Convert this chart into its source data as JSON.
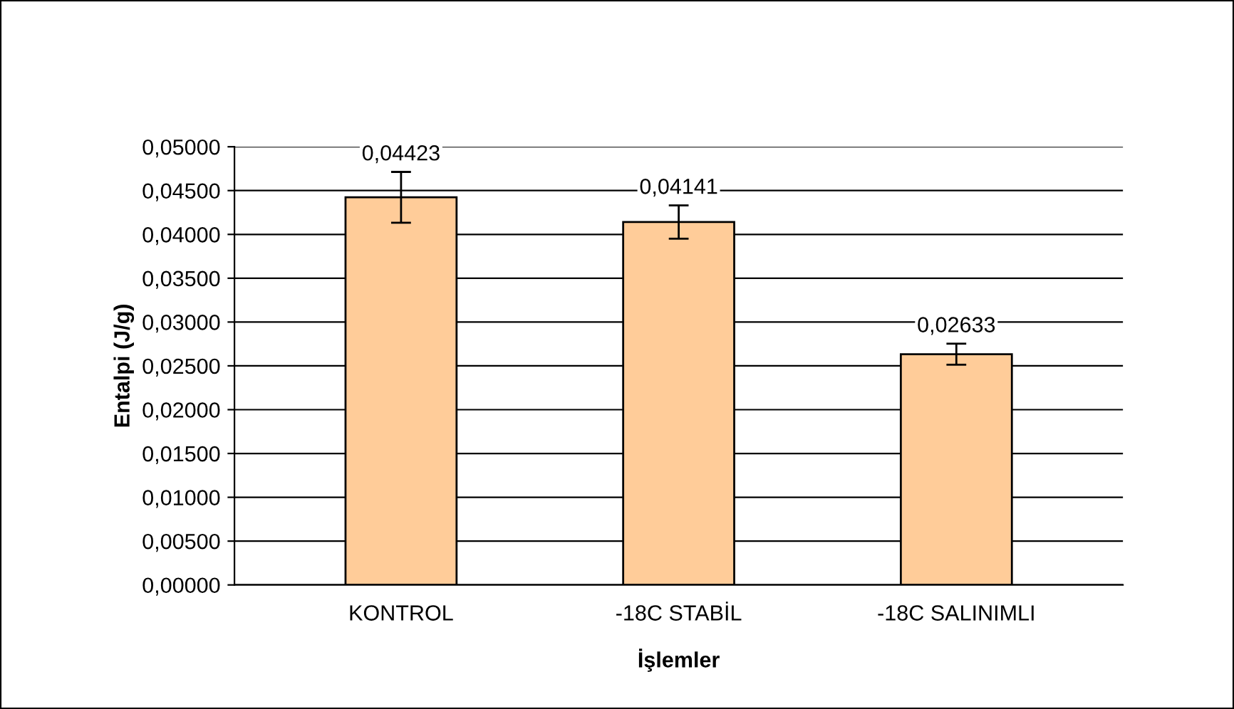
{
  "chart_data": {
    "type": "bar",
    "xlabel": "İşlemler",
    "ylabel": "Entalpi (J/g)",
    "categories": [
      "KONTROL",
      "-18C STABİL",
      "-18C SALINIMLI"
    ],
    "values": [
      0.04423,
      0.04141,
      0.02633
    ],
    "errors": [
      0.0029,
      0.0019,
      0.0012
    ],
    "value_labels": [
      "0,04423",
      "0,04141",
      "0,02633"
    ],
    "color": "#ffcc99",
    "ylim": [
      0,
      0.05
    ],
    "yticks": [
      {
        "value": 0,
        "label": "0,00000"
      },
      {
        "value": 0.005,
        "label": "0,00500"
      },
      {
        "value": 0.01,
        "label": "0,01000"
      },
      {
        "value": 0.015,
        "label": "0,01500"
      },
      {
        "value": 0.02,
        "label": "0,02000"
      },
      {
        "value": 0.025,
        "label": "0,02500"
      },
      {
        "value": 0.03,
        "label": "0,03000"
      },
      {
        "value": 0.035,
        "label": "0,03500"
      },
      {
        "value": 0.04,
        "label": "0,04000"
      },
      {
        "value": 0.045,
        "label": "0,04500"
      },
      {
        "value": 0.05,
        "label": "0,05000"
      }
    ],
    "grid": "y"
  }
}
